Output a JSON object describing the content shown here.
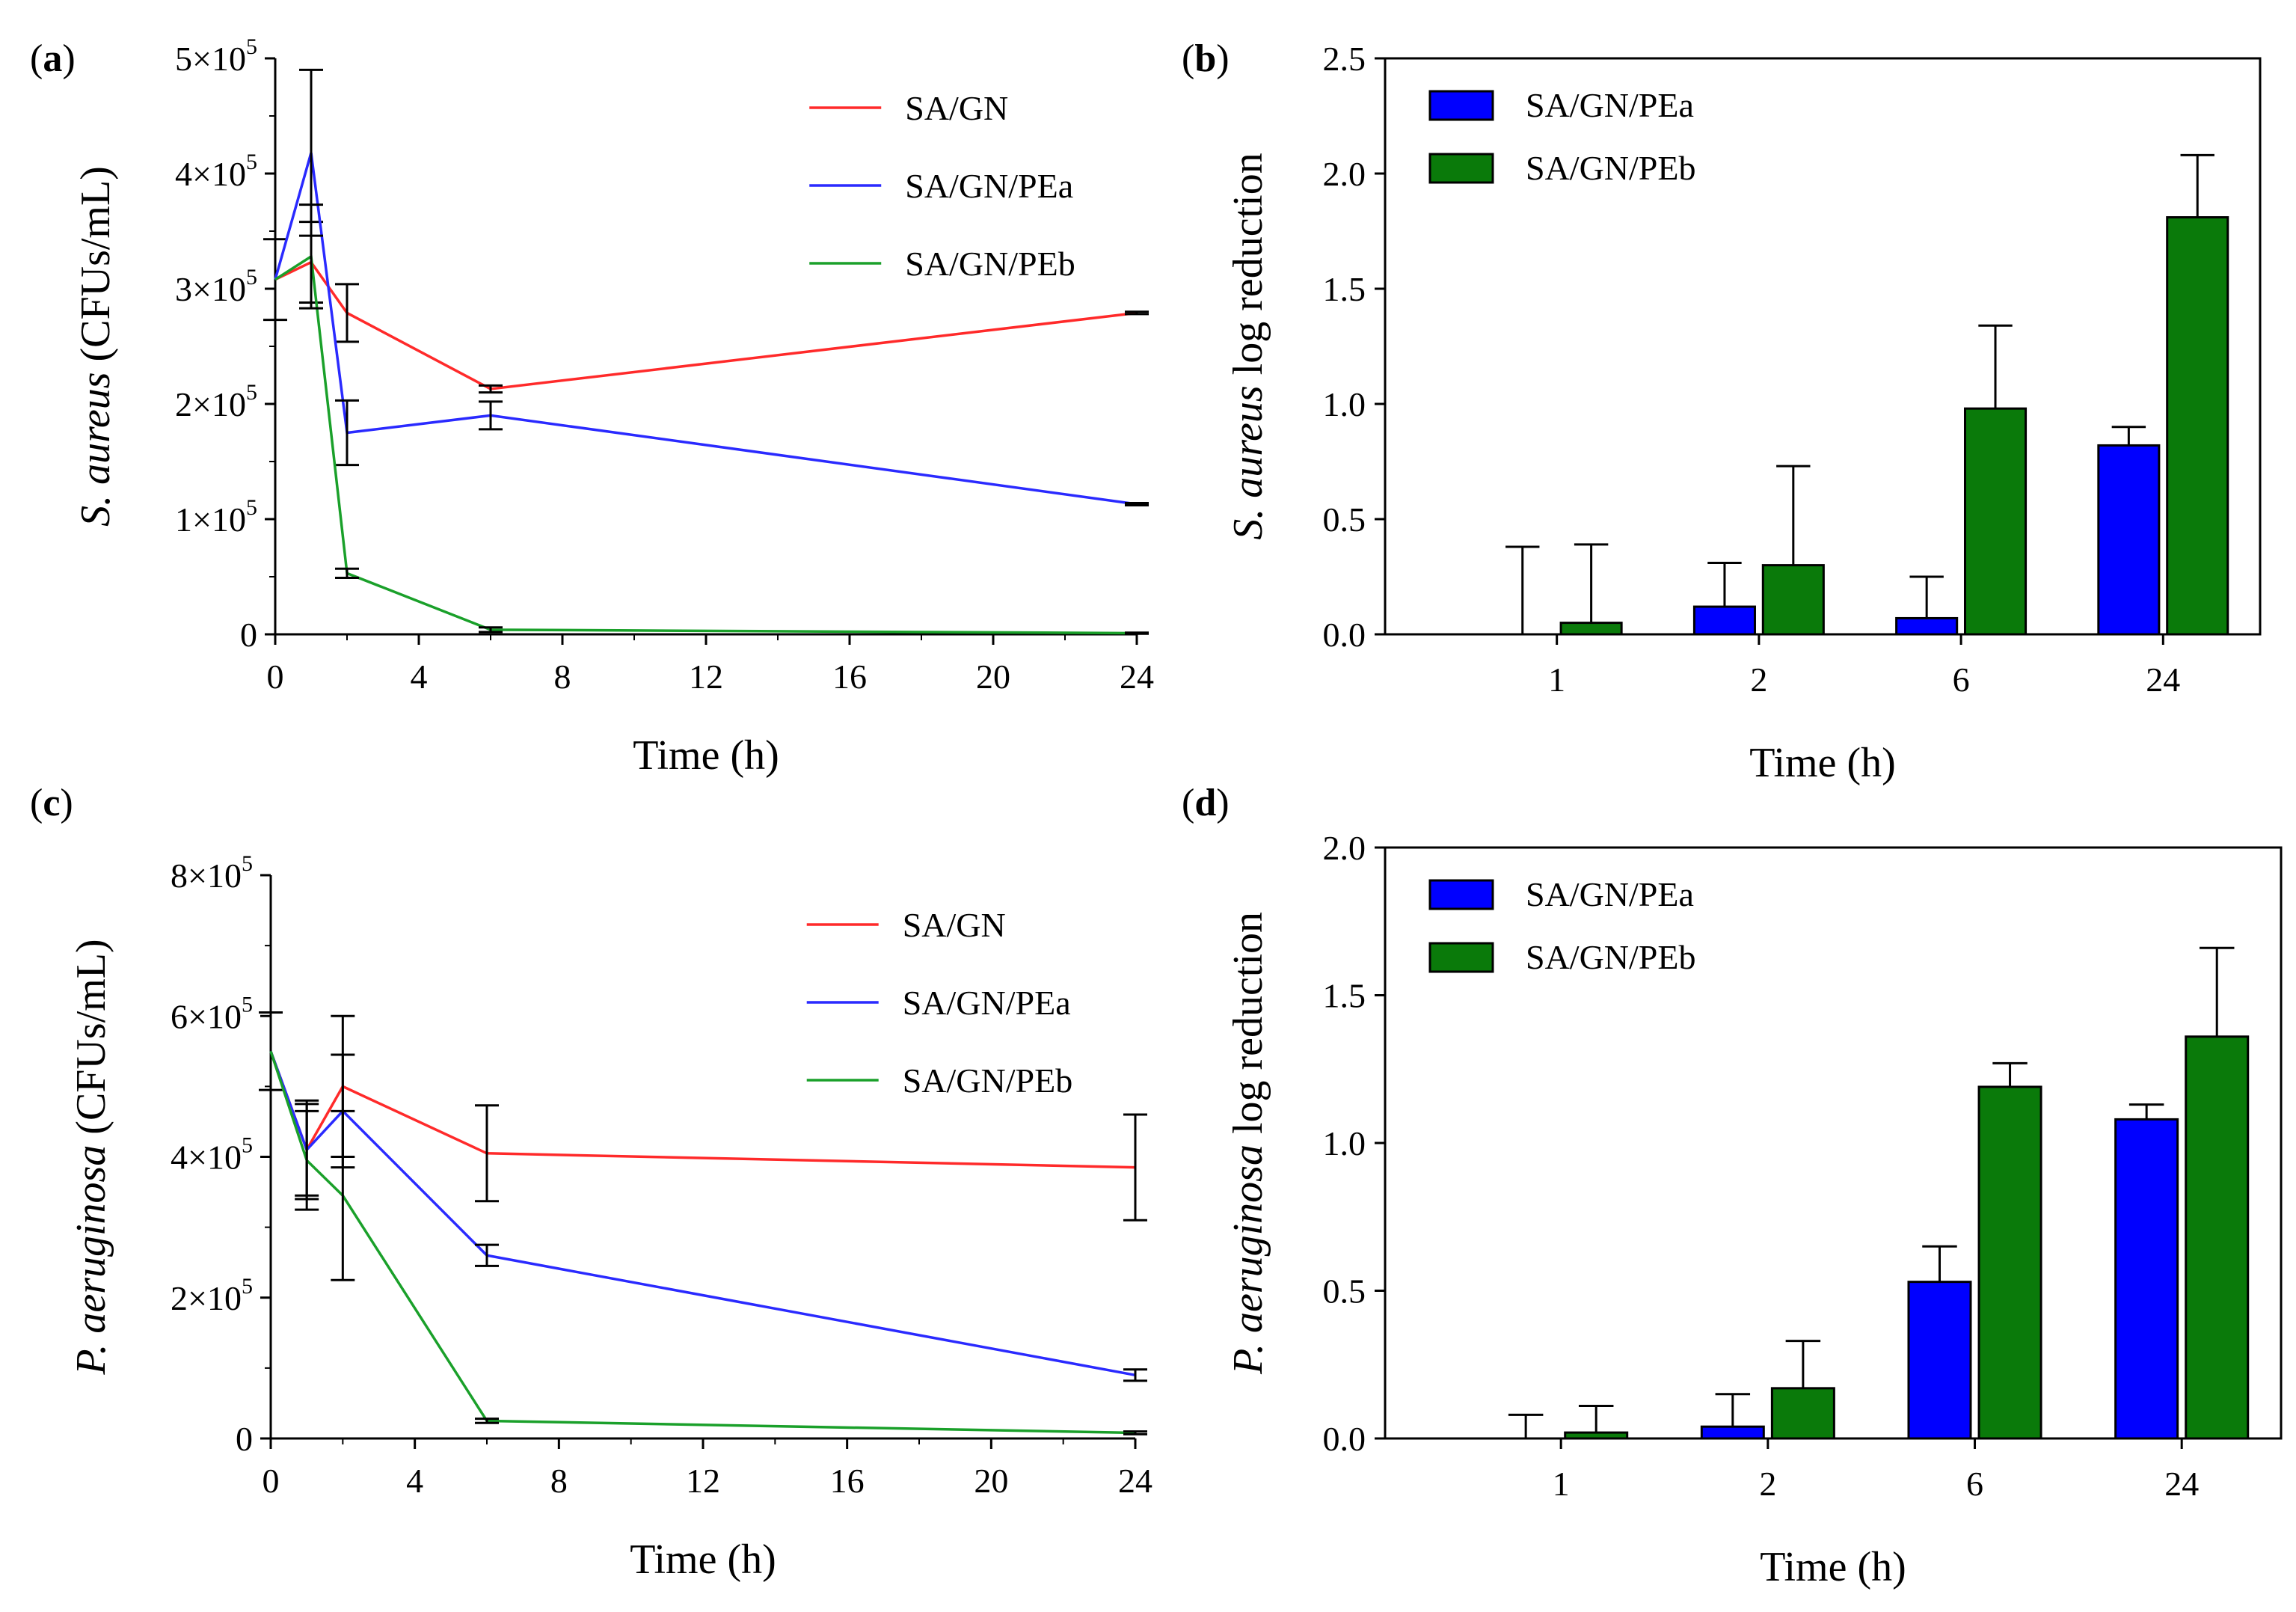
{
  "colors": {
    "red": "#ff2a2a",
    "blue": "#2a2aff",
    "green": "#1aa02a",
    "bar_blue": "#0000ff",
    "bar_green": "#0a7a0a"
  },
  "chart_data": [
    {
      "panel": "(a)",
      "panel_letter": "a",
      "type": "line",
      "xlabel": "Time (h)",
      "ylabel_italic": "S. aureus",
      "ylabel_rest": " (CFUs/mL)",
      "xlim": [
        0,
        24
      ],
      "ylim": [
        0,
        500000
      ],
      "xticks": [
        0,
        4,
        8,
        12,
        16,
        20,
        24
      ],
      "yticks": [
        {
          "value": 0,
          "mantissa": "0",
          "exponent": ""
        },
        {
          "value": 100000,
          "mantissa": "1×10",
          "exponent": "5"
        },
        {
          "value": 200000,
          "mantissa": "2×10",
          "exponent": "5"
        },
        {
          "value": 300000,
          "mantissa": "3×10",
          "exponent": "5"
        },
        {
          "value": 400000,
          "mantissa": "4×10",
          "exponent": "5"
        },
        {
          "value": 500000,
          "mantissa": "5×10",
          "exponent": "5"
        }
      ],
      "legend_position": "top-right",
      "series": [
        {
          "name": "SA/GN",
          "color": "#ff2a2a",
          "x": [
            0,
            1,
            2,
            6,
            24
          ],
          "y": [
            308000,
            323000,
            279000,
            213000,
            279000
          ],
          "err": [
            35000,
            35000,
            25000,
            3000,
            1000
          ]
        },
        {
          "name": "SA/GN/PEa",
          "color": "#2a2aff",
          "x": [
            0,
            1,
            2,
            6,
            24
          ],
          "y": [
            308000,
            418000,
            175000,
            190000,
            113000
          ],
          "err": [
            0,
            72000,
            28000,
            12000,
            1000
          ]
        },
        {
          "name": "SA/GN/PEb",
          "color": "#1aa02a",
          "x": [
            0,
            1,
            2,
            6,
            24
          ],
          "y": [
            308000,
            328000,
            53000,
            4000,
            1000
          ],
          "err": [
            0,
            45000,
            4000,
            2000,
            500
          ]
        }
      ]
    },
    {
      "panel": "(b)",
      "panel_letter": "b",
      "type": "bar",
      "xlabel": "Time (h)",
      "ylabel_italic": "S. aureus",
      "ylabel_rest": " log reduction",
      "categories": [
        "1",
        "2",
        "6",
        "24"
      ],
      "ylim": [
        0,
        2.5
      ],
      "yticks": [
        "0.0",
        "0.5",
        "1.0",
        "1.5",
        "2.0",
        "2.5"
      ],
      "legend_position": "top-left",
      "series": [
        {
          "name": "SA/GN/PEa",
          "color": "#0000ff",
          "values": [
            0.0,
            0.12,
            0.07,
            0.82
          ],
          "err": [
            0.38,
            0.19,
            0.18,
            0.08
          ]
        },
        {
          "name": "SA/GN/PEb",
          "color": "#0a7a0a",
          "values": [
            0.05,
            0.3,
            0.98,
            1.81
          ],
          "err": [
            0.34,
            0.43,
            0.36,
            0.27
          ]
        }
      ]
    },
    {
      "panel": "(c)",
      "panel_letter": "c",
      "type": "line",
      "xlabel": "Time (h)",
      "ylabel_italic": "P. aeruginosa",
      "ylabel_rest": " (CFUs/mL)",
      "xlim": [
        0,
        24
      ],
      "ylim": [
        0,
        800000
      ],
      "xticks": [
        0,
        4,
        8,
        12,
        16,
        20,
        24
      ],
      "yticks": [
        {
          "value": 0,
          "mantissa": "0",
          "exponent": ""
        },
        {
          "value": 200000,
          "mantissa": "2×10",
          "exponent": "5"
        },
        {
          "value": 400000,
          "mantissa": "4×10",
          "exponent": "5"
        },
        {
          "value": 600000,
          "mantissa": "6×10",
          "exponent": "5"
        },
        {
          "value": 800000,
          "mantissa": "8×10",
          "exponent": "5"
        }
      ],
      "legend_position": "top-right",
      "series": [
        {
          "name": "SA/GN",
          "color": "#ff2a2a",
          "x": [
            0,
            1,
            2,
            6,
            24
          ],
          "y": [
            550000,
            410000,
            500000,
            405000,
            385000
          ],
          "err": [
            55000,
            70000,
            100000,
            68000,
            75000
          ]
        },
        {
          "name": "SA/GN/PEa",
          "color": "#2a2aff",
          "x": [
            0,
            1,
            2,
            6,
            24
          ],
          "y": [
            550000,
            410000,
            465000,
            260000,
            90000
          ],
          "err": [
            0,
            65000,
            80000,
            15000,
            8000
          ]
        },
        {
          "name": "SA/GN/PEb",
          "color": "#1aa02a",
          "x": [
            0,
            1,
            2,
            6,
            24
          ],
          "y": [
            550000,
            395000,
            345000,
            25000,
            8000
          ],
          "err": [
            0,
            70000,
            120000,
            3000,
            2000
          ]
        }
      ]
    },
    {
      "panel": "(d)",
      "panel_letter": "d",
      "type": "bar",
      "xlabel": "Time (h)",
      "ylabel_italic": "P. aeruginosa",
      "ylabel_rest": " log reduction",
      "categories": [
        "1",
        "2",
        "6",
        "24"
      ],
      "ylim": [
        0,
        2.0
      ],
      "yticks": [
        "0.0",
        "0.5",
        "1.0",
        "1.5",
        "2.0"
      ],
      "legend_position": "top-left",
      "series": [
        {
          "name": "SA/GN/PEa",
          "color": "#0000ff",
          "values": [
            0.0,
            0.04,
            0.53,
            1.08
          ],
          "err": [
            0.08,
            0.11,
            0.12,
            0.05
          ]
        },
        {
          "name": "SA/GN/PEb",
          "color": "#0a7a0a",
          "values": [
            0.02,
            0.17,
            1.19,
            1.36
          ],
          "err": [
            0.09,
            0.16,
            0.08,
            0.3
          ]
        }
      ]
    }
  ]
}
